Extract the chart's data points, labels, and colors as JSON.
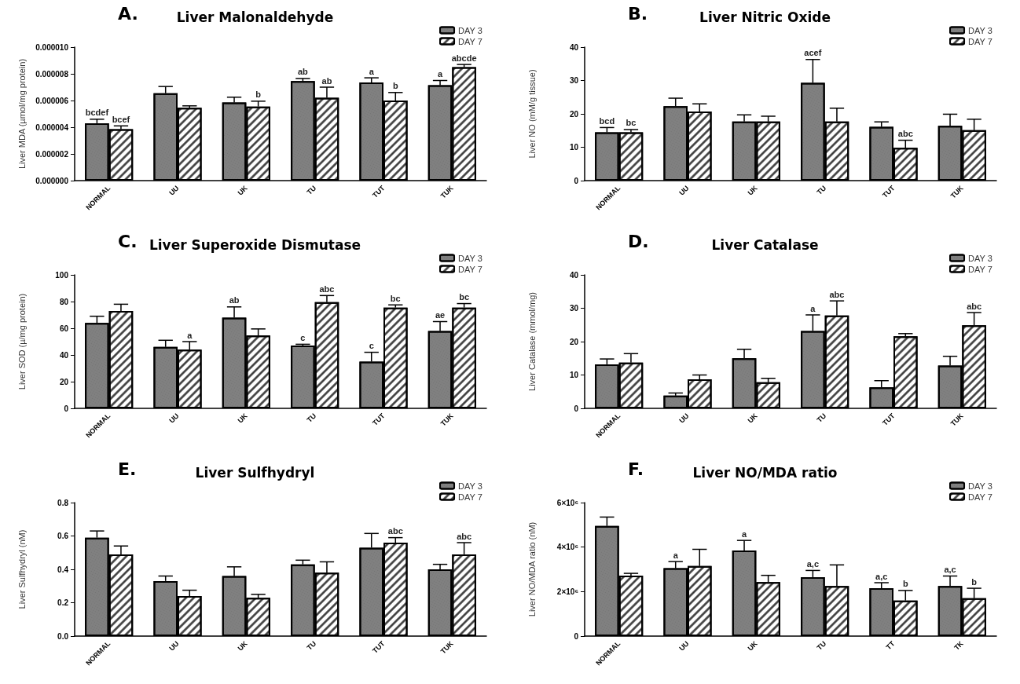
{
  "chart_data": [
    {
      "type": "bar",
      "title": "Liver Malonaldehyde",
      "annotations": [
        "A."
      ],
      "ylabel": "Liver MDA (µmol/mg protein)",
      "categories": [
        "NORMAL",
        "UU",
        "UK",
        "TU",
        "TUT",
        "TUK"
      ],
      "series": [
        {
          "name": "DAY 3",
          "color": "#808080",
          "values": [
            4.3e-06,
            6.55e-06,
            5.85e-06,
            7.45e-06,
            7.35e-06,
            7.15e-06
          ],
          "errors": [
            3e-07,
            5e-07,
            4e-07,
            2e-07,
            3.5e-07,
            3.5e-07
          ],
          "value_labels": [
            "bcdef",
            null,
            null,
            "ab",
            "a",
            "a"
          ]
        },
        {
          "name": "DAY 7",
          "color": "#ffffff",
          "values": [
            3.85e-06,
            5.45e-06,
            5.55e-06,
            6.2e-06,
            6e-06,
            8.5e-06
          ],
          "errors": [
            2.5e-07,
            1.5e-07,
            4e-07,
            8e-07,
            6e-07,
            2e-07
          ],
          "value_labels": [
            "bcef",
            null,
            "b",
            "ab",
            "b",
            "abcde"
          ]
        }
      ],
      "ylim": [
        0,
        1e-05
      ],
      "yticks": [
        {
          "value": 0,
          "label": "0.000000"
        },
        {
          "value": 2e-06,
          "label": "0.000002"
        },
        {
          "value": 4e-06,
          "label": "0.000004"
        },
        {
          "value": 6e-06,
          "label": "0.000006"
        },
        {
          "value": 8e-06,
          "label": "0.000008"
        },
        {
          "value": 1e-05,
          "label": "0.000010"
        }
      ],
      "legend": "top right"
    },
    {
      "type": "bar",
      "title": "Liver Nitric Oxide",
      "annotations": [
        "B."
      ],
      "ylabel": "Liver NO (mM/g tissue)",
      "categories": [
        "NORMAL",
        "UU",
        "UK",
        "TU",
        "TUT",
        "TUK"
      ],
      "series": [
        {
          "name": "DAY 3",
          "color": "#808080",
          "values": [
            14.5,
            22.3,
            17.7,
            29.3,
            16.1,
            16.4
          ],
          "errors": [
            1.4,
            2.4,
            2.0,
            7.0,
            1.5,
            3.5
          ],
          "value_labels": [
            "bcd",
            null,
            null,
            "acef",
            null,
            null
          ]
        },
        {
          "name": "DAY 7",
          "color": "#ffffff",
          "values": [
            14.5,
            20.7,
            17.7,
            17.7,
            9.8,
            15.1
          ],
          "errors": [
            0.8,
            2.3,
            1.6,
            4.0,
            2.3,
            3.3
          ],
          "value_labels": [
            "bc",
            null,
            null,
            null,
            "abc",
            null
          ]
        }
      ],
      "ylim": [
        0,
        40
      ],
      "yticks": [
        0,
        10,
        20,
        30,
        40
      ],
      "legend": "top right"
    },
    {
      "type": "bar",
      "title": "Liver Superoxide Dismutase",
      "annotations": [
        "C."
      ],
      "ylabel": "Liver SOD (µ/mg protein)",
      "categories": [
        "NORMAL",
        "UU",
        "UK",
        "TU",
        "TUT",
        "TUK"
      ],
      "series": [
        {
          "name": "DAY 3",
          "color": "#808080",
          "values": [
            64,
            46,
            68,
            47,
            35,
            58
          ],
          "errors": [
            5,
            5,
            8,
            1,
            7,
            7
          ],
          "value_labels": [
            null,
            null,
            "ab",
            "c",
            "c",
            "ae"
          ]
        },
        {
          "name": "DAY 7",
          "color": "#ffffff",
          "values": [
            73,
            44,
            54.5,
            79.5,
            75.5,
            75.5
          ],
          "errors": [
            5,
            6,
            5,
            5,
            2,
            3
          ],
          "value_labels": [
            null,
            "a",
            null,
            "abc",
            "bc",
            "bc"
          ]
        }
      ],
      "ylim": [
        0,
        100
      ],
      "yticks": [
        0,
        20,
        40,
        60,
        80,
        100
      ],
      "legend": "top right"
    },
    {
      "type": "bar",
      "title": "Liver Catalase",
      "annotations": [
        "D."
      ],
      "ylabel": "Liver Catalase (mmol/mg)",
      "categories": [
        "NORMAL",
        "UU",
        "UK",
        "TU",
        "TUT",
        "TUK"
      ],
      "series": [
        {
          "name": "DAY 3",
          "color": "#808080",
          "values": [
            13.2,
            3.8,
            15,
            23.2,
            6.3,
            12.8
          ],
          "errors": [
            1.6,
            0.8,
            2.7,
            4.8,
            2.0,
            2.8
          ],
          "value_labels": [
            null,
            null,
            null,
            "a",
            null,
            null
          ]
        },
        {
          "name": "DAY 7",
          "color": "#ffffff",
          "values": [
            13.7,
            8.7,
            7.8,
            27.8,
            21.6,
            24.9
          ],
          "errors": [
            2.7,
            1.3,
            1.2,
            4.4,
            0.8,
            3.8
          ],
          "value_labels": [
            null,
            null,
            null,
            "abc",
            null,
            "abc"
          ]
        }
      ],
      "ylim": [
        0,
        40
      ],
      "yticks": [
        0,
        10,
        20,
        30,
        40
      ],
      "legend": "top right"
    },
    {
      "type": "bar",
      "title": "Liver Sulfhydryl",
      "annotations": [
        "E."
      ],
      "ylabel": "Liver Sulfhydryl (nM)",
      "categories": [
        "NORMAL",
        "UU",
        "UK",
        "TU",
        "TUT",
        "TUK"
      ],
      "series": [
        {
          "name": "DAY 3",
          "color": "#808080",
          "values": [
            0.59,
            0.33,
            0.36,
            0.43,
            0.53,
            0.4
          ],
          "errors": [
            0.04,
            0.03,
            0.055,
            0.025,
            0.085,
            0.03
          ],
          "value_labels": [
            null,
            null,
            null,
            null,
            null,
            null
          ]
        },
        {
          "name": "DAY 7",
          "color": "#ffffff",
          "values": [
            0.49,
            0.24,
            0.23,
            0.38,
            0.56,
            0.49
          ],
          "errors": [
            0.05,
            0.035,
            0.02,
            0.065,
            0.03,
            0.07
          ],
          "value_labels": [
            null,
            null,
            null,
            null,
            "abc",
            "abc"
          ]
        }
      ],
      "ylim": [
        0,
        0.8
      ],
      "yticks": [
        {
          "value": 0,
          "label": "0.0"
        },
        0.2,
        0.4,
        0.6,
        0.8
      ],
      "legend": "top right"
    },
    {
      "type": "bar",
      "title": "Liver NO/MDA ratio",
      "annotations": [
        "F."
      ],
      "ylabel": "Liver NO/MDA ratio (nM)",
      "categories": [
        "NORMAL",
        "UU",
        "UK",
        "TU",
        "TT",
        "TK"
      ],
      "series": [
        {
          "name": "DAY 3",
          "color": "#808080",
          "values": [
            4950000,
            3050000,
            3850000,
            2650000,
            2150000,
            2250000
          ],
          "errors": [
            400000,
            300000,
            450000,
            300000,
            250000,
            450000
          ],
          "value_labels": [
            null,
            "a",
            "a",
            "a,c",
            "a,c",
            "a,c"
          ]
        },
        {
          "name": "DAY 7",
          "color": "#ffffff",
          "values": [
            2720000,
            3150000,
            2430000,
            2250000,
            1600000,
            1700000
          ],
          "errors": [
            100000,
            750000,
            300000,
            950000,
            450000,
            450000
          ],
          "value_labels": [
            null,
            null,
            null,
            null,
            "b",
            "b"
          ]
        }
      ],
      "ylim": [
        0,
        6000000
      ],
      "yticks": [
        0,
        {
          "value": 2000000,
          "label": "2×10⁶"
        },
        {
          "value": 4000000,
          "label": "4×10⁶"
        },
        {
          "value": 6000000,
          "label": "6×10⁶"
        }
      ],
      "legend": "top right"
    }
  ]
}
